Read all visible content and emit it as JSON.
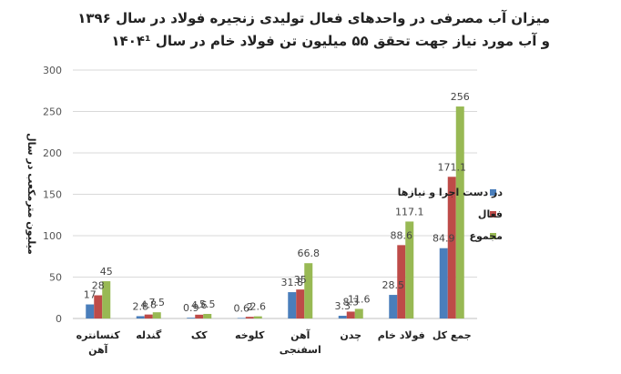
{
  "chart_data": {
    "type": "bar",
    "title_lines": [
      "میزان آب مصرفی در واحدهای فعال تولیدی زنجیره فولاد در سال ۱۳۹۶",
      "و آب مورد نیاز جهت تحقق ۵۵ میلیون تن فولاد خام در سال ۱۴۰۴¹"
    ],
    "ylabel": "میلیون مترمکعب در سال",
    "ylim": [
      0,
      300
    ],
    "yticks": [
      "0",
      "50",
      "100",
      "150",
      "200",
      "250",
      "300"
    ],
    "grid": true,
    "legend_position": "right",
    "categories": [
      [
        "کنسانتره",
        "آهن"
      ],
      [
        "گندله"
      ],
      [
        "کک"
      ],
      [
        "کلوخه"
      ],
      [
        "آهن",
        "اسفنجی"
      ],
      [
        "چدن"
      ],
      [
        "فولاد خام"
      ],
      [
        "جمع کل"
      ]
    ],
    "series": [
      {
        "name": "در دست اجرا و نیازها",
        "color": "#4A7EBB",
        "values": [
          17,
          2.8,
          0.9,
          0.6,
          31.8,
          3.3,
          28.5,
          84.9
        ],
        "labels": [
          "17",
          "2.8",
          "0.9",
          "0.6",
          "31.8",
          "3.3",
          "28.5",
          "84.9"
        ]
      },
      {
        "name": "فعال",
        "color": "#BE4B48",
        "values": [
          28,
          4.8,
          4.6,
          2,
          35,
          8.3,
          88.6,
          171.1
        ],
        "labels": [
          "28",
          "4.8",
          "4.6",
          "2",
          "35",
          "8.3",
          "88.6",
          "171.1"
        ]
      },
      {
        "name": "مجموع",
        "color": "#98B954",
        "values": [
          45,
          7.5,
          5.5,
          2.6,
          66.8,
          11.6,
          117.1,
          256
        ],
        "labels": [
          "45",
          "7.5",
          "5.5",
          "2.6",
          "66.8",
          "11.6",
          "117.1",
          "256"
        ]
      }
    ]
  }
}
